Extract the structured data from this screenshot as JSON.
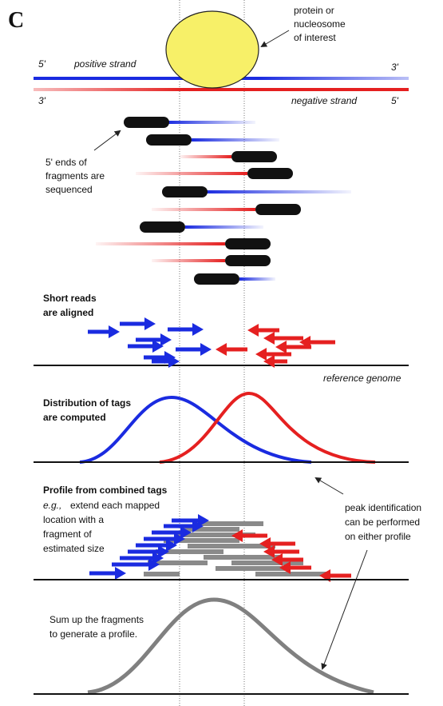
{
  "panel_label": "C",
  "protein_label": [
    "protein or",
    "nucleosome",
    "of interest"
  ],
  "strands": {
    "positive": {
      "left": "5'",
      "name": "positive strand",
      "right": "3'"
    },
    "negative": {
      "left": "3'",
      "name": "negative strand",
      "right": "5'"
    }
  },
  "fragments_label": [
    "5' ends of",
    "fragments are",
    "sequenced"
  ],
  "aligned": {
    "title": [
      "Short reads",
      "are aligned"
    ],
    "reference": "reference genome"
  },
  "distribution": {
    "title": [
      "Distribution of tags",
      "are computed"
    ]
  },
  "profile": {
    "title": "Profile from combined tags",
    "note": [
      "e.g.,",
      "extend each mapped",
      "location with a",
      "fragment of",
      "estimated size"
    ]
  },
  "peak_note": [
    "peak identification",
    "can be performed",
    "on either profile"
  ],
  "sum_note": [
    "Sum up the fragments",
    "to generate a profile."
  ]
}
